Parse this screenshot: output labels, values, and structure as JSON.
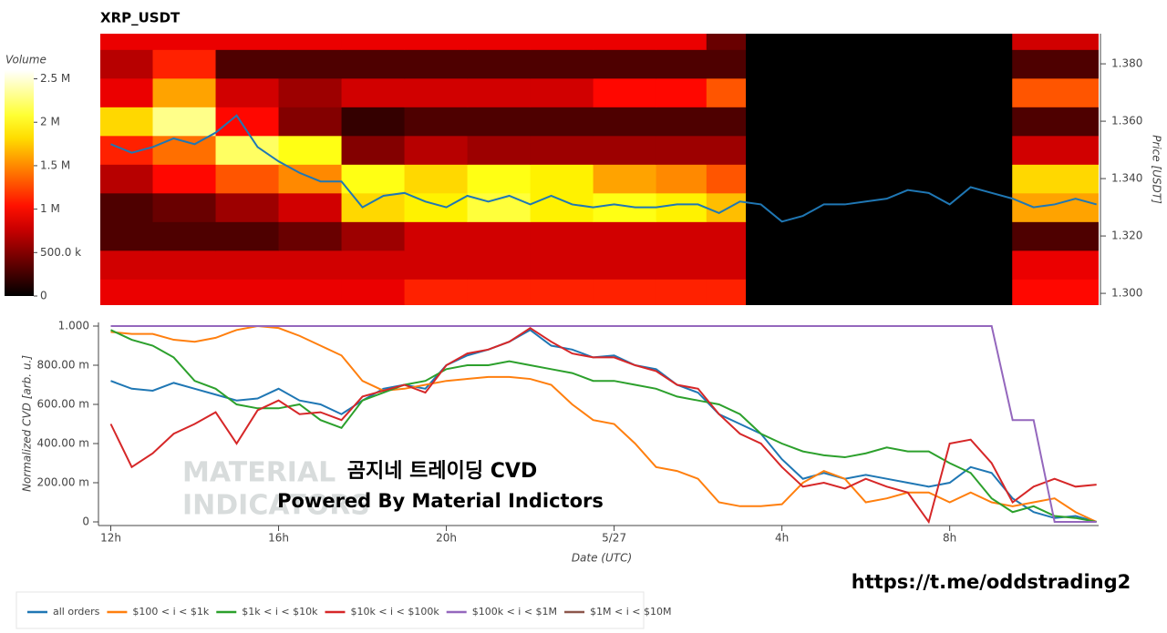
{
  "chart_data": [
    {
      "type": "heatmap",
      "title": "XRP_USDT",
      "colorbar_title": "Volume",
      "y_label": "Price [USDT]",
      "colormap": "hot",
      "xlim": [
        11.75,
        35.55
      ],
      "ylim": [
        1.2959,
        1.3905
      ],
      "yticks": [
        {
          "value": 1.3,
          "label": "1.300"
        },
        {
          "value": 1.32,
          "label": "1.320"
        },
        {
          "value": 1.34,
          "label": "1.340"
        },
        {
          "value": 1.36,
          "label": "1.360"
        },
        {
          "value": 1.38,
          "label": "1.380"
        }
      ],
      "clim": [
        0,
        2600000
      ],
      "cticks": [
        0,
        {
          "value": 500000,
          "label": "500.0 k"
        },
        {
          "value": 1000000,
          "label": "1 M"
        },
        {
          "value": 1500000,
          "label": "1.5 M"
        },
        {
          "value": 2000000,
          "label": "2 M"
        },
        {
          "value": 2500000,
          "label": "2.5 M"
        }
      ],
      "x_edges": [
        11.75,
        13,
        14.5,
        16,
        17.5,
        19,
        20.5,
        22,
        23.5,
        25,
        26.2,
        27.14,
        33.49,
        35.55
      ],
      "levels": [
        1.3,
        1.31,
        1.32,
        1.33,
        1.34,
        1.35,
        1.36,
        1.37,
        1.38,
        1.39
      ],
      "z": [
        [
          900000,
          900000,
          900000,
          900000,
          900000,
          1100000,
          1100000,
          1100000,
          1100000,
          1100000,
          1100000,
          0,
          1000000
        ],
        [
          800000,
          800000,
          800000,
          800000,
          800000,
          800000,
          800000,
          800000,
          800000,
          800000,
          800000,
          0,
          900000
        ],
        [
          300000,
          300000,
          300000,
          400000,
          600000,
          800000,
          800000,
          800000,
          800000,
          800000,
          800000,
          0,
          300000
        ],
        [
          300000,
          400000,
          600000,
          800000,
          1800000,
          1900000,
          2100000,
          1900000,
          2000000,
          1900000,
          1700000,
          0,
          1600000
        ],
        [
          700000,
          1000000,
          1300000,
          1500000,
          2000000,
          1800000,
          2000000,
          1900000,
          1600000,
          1500000,
          1300000,
          0,
          1800000
        ],
        [
          1100000,
          1400000,
          2200000,
          2000000,
          500000,
          700000,
          600000,
          600000,
          600000,
          600000,
          600000,
          0,
          800000
        ],
        [
          1800000,
          2300000,
          1000000,
          500000,
          200000,
          300000,
          300000,
          300000,
          300000,
          300000,
          300000,
          0,
          300000
        ],
        [
          900000,
          1600000,
          800000,
          600000,
          800000,
          800000,
          800000,
          800000,
          1000000,
          1000000,
          1300000,
          0,
          1300000
        ],
        [
          700000,
          1100000,
          300000,
          300000,
          300000,
          300000,
          300000,
          300000,
          300000,
          300000,
          300000,
          0,
          300000
        ],
        [
          900000,
          900000,
          900000,
          900000,
          900000,
          900000,
          900000,
          900000,
          900000,
          900000,
          400000,
          0,
          800000
        ]
      ],
      "line": {
        "color": "#1f77b4",
        "x": [
          12,
          12.5,
          13,
          13.5,
          14,
          14.5,
          15,
          15.5,
          16,
          16.5,
          17,
          17.5,
          18,
          18.5,
          19,
          19.5,
          20,
          20.5,
          21,
          21.5,
          22,
          22.5,
          23,
          23.5,
          24,
          24.5,
          25,
          25.5,
          26,
          26.5,
          27,
          27.5,
          28,
          28.5,
          29,
          29.5,
          30,
          30.5,
          31,
          31.5,
          32,
          32.5,
          33,
          33.5,
          34,
          34.5,
          35,
          35.5
        ],
        "values": [
          1.352,
          1.349,
          1.351,
          1.354,
          1.352,
          1.356,
          1.362,
          1.351,
          1.346,
          1.342,
          1.339,
          1.339,
          1.33,
          1.334,
          1.335,
          1.332,
          1.33,
          1.334,
          1.332,
          1.334,
          1.331,
          1.334,
          1.331,
          1.33,
          1.331,
          1.33,
          1.33,
          1.331,
          1.331,
          1.328,
          1.332,
          1.331,
          1.325,
          1.327,
          1.331,
          1.331,
          1.332,
          1.333,
          1.336,
          1.335,
          1.331,
          1.337,
          1.335,
          1.333,
          1.33,
          1.331,
          1.333,
          1.331
        ]
      }
    },
    {
      "type": "line",
      "x_label": "Date (UTC)",
      "y_label": "Normalized CVD [arb. u.]",
      "xlim": [
        11.75,
        35.55
      ],
      "ylim": [
        0,
        1
      ],
      "xticks": [
        {
          "value": 12,
          "label": "12h"
        },
        {
          "value": 16,
          "label": "16h"
        },
        {
          "value": 20,
          "label": "20h"
        },
        {
          "value": 24,
          "label": "5/27"
        },
        {
          "value": 28,
          "label": "4h"
        },
        {
          "value": 32,
          "label": "8h"
        }
      ],
      "yticks": [
        0,
        {
          "value": 0.2,
          "label": "200.00 m"
        },
        {
          "value": 0.4,
          "label": "400.00 m"
        },
        {
          "value": 0.6,
          "label": "600.00 m"
        },
        {
          "value": 0.8,
          "label": "800.00 m"
        },
        {
          "value": 1,
          "label": "1.000"
        }
      ],
      "x": [
        12,
        12.5,
        13,
        13.5,
        14,
        14.5,
        15,
        15.5,
        16,
        16.5,
        17,
        17.5,
        18,
        18.5,
        19,
        19.5,
        20,
        20.5,
        21,
        21.5,
        22,
        22.5,
        23,
        23.5,
        24,
        24.5,
        25,
        25.5,
        26,
        26.5,
        27,
        27.5,
        28,
        28.5,
        29,
        29.5,
        30,
        30.5,
        31,
        31.5,
        32,
        32.5,
        33,
        33.5,
        34,
        34.5,
        35,
        35.5
      ],
      "series": [
        {
          "name": "all orders",
          "color": "#1f77b4",
          "values": [
            0.72,
            0.68,
            0.67,
            0.71,
            0.68,
            0.65,
            0.62,
            0.63,
            0.68,
            0.62,
            0.6,
            0.55,
            0.62,
            0.68,
            0.7,
            0.68,
            0.8,
            0.85,
            0.88,
            0.92,
            0.98,
            0.9,
            0.88,
            0.84,
            0.85,
            0.8,
            0.78,
            0.7,
            0.66,
            0.55,
            0.5,
            0.45,
            0.32,
            0.22,
            0.25,
            0.22,
            0.24,
            0.22,
            0.2,
            0.18,
            0.2,
            0.28,
            0.25,
            0.12,
            0.05,
            0.02,
            0.03,
            0.0
          ]
        },
        {
          "name": "$100 < i < $1k",
          "color": "#ff7f0e",
          "values": [
            0.97,
            0.96,
            0.96,
            0.93,
            0.92,
            0.94,
            0.98,
            1.0,
            0.99,
            0.95,
            0.9,
            0.85,
            0.72,
            0.67,
            0.68,
            0.7,
            0.72,
            0.73,
            0.74,
            0.74,
            0.73,
            0.7,
            0.6,
            0.52,
            0.5,
            0.4,
            0.28,
            0.26,
            0.22,
            0.1,
            0.08,
            0.08,
            0.09,
            0.2,
            0.26,
            0.22,
            0.1,
            0.12,
            0.15,
            0.15,
            0.1,
            0.15,
            0.1,
            0.08,
            0.1,
            0.12,
            0.05,
            0.0
          ]
        },
        {
          "name": "$1k < i < $10k",
          "color": "#2ca02c",
          "values": [
            0.98,
            0.93,
            0.9,
            0.84,
            0.72,
            0.68,
            0.6,
            0.58,
            0.58,
            0.6,
            0.52,
            0.48,
            0.62,
            0.66,
            0.7,
            0.72,
            0.78,
            0.8,
            0.8,
            0.82,
            0.8,
            0.78,
            0.76,
            0.72,
            0.72,
            0.7,
            0.68,
            0.64,
            0.62,
            0.6,
            0.55,
            0.45,
            0.4,
            0.36,
            0.34,
            0.33,
            0.35,
            0.38,
            0.36,
            0.36,
            0.3,
            0.25,
            0.12,
            0.05,
            0.08,
            0.03,
            0.02,
            0.0
          ]
        },
        {
          "name": "$10k < i < $100k",
          "color": "#d62728",
          "values": [
            0.5,
            0.28,
            0.35,
            0.45,
            0.5,
            0.56,
            0.4,
            0.57,
            0.62,
            0.55,
            0.56,
            0.52,
            0.64,
            0.67,
            0.7,
            0.66,
            0.8,
            0.86,
            0.88,
            0.92,
            0.99,
            0.92,
            0.86,
            0.84,
            0.84,
            0.8,
            0.77,
            0.7,
            0.68,
            0.55,
            0.45,
            0.4,
            0.28,
            0.18,
            0.2,
            0.17,
            0.22,
            0.18,
            0.15,
            0.0,
            0.4,
            0.42,
            0.3,
            0.1,
            0.18,
            0.22,
            0.18,
            0.19
          ]
        },
        {
          "name": "$100k < i < $1M",
          "color": "#9467bd",
          "values": [
            1,
            1,
            1,
            1,
            1,
            1,
            1,
            1,
            1,
            1,
            1,
            1,
            1,
            1,
            1,
            1,
            1,
            1,
            1,
            1,
            1,
            1,
            1,
            1,
            1,
            1,
            1,
            1,
            1,
            1,
            1,
            1,
            1,
            1,
            1,
            1,
            1,
            1,
            1,
            1,
            1,
            1,
            1,
            0.52,
            0.52,
            0.0,
            0.0,
            0.0
          ]
        },
        {
          "name": "$1M < i < $10M",
          "color": "#8c564b",
          "values": [
            null,
            null,
            null,
            null,
            null,
            null,
            null,
            null,
            null,
            null,
            null,
            null,
            null,
            null,
            null,
            null,
            null,
            null,
            null,
            null,
            null,
            null,
            null,
            null,
            null,
            null,
            null,
            null,
            null,
            null,
            null,
            null,
            null,
            null,
            null,
            null,
            null,
            null,
            null,
            null,
            null,
            null,
            null,
            null,
            null,
            null,
            null,
            null
          ]
        }
      ]
    }
  ],
  "overlay": {
    "watermark": [
      "MATERIAL",
      "INDICATORS"
    ],
    "headline": "곰지네 트레이딩 CVD",
    "subline": "Powered By Material Indictors",
    "link": "https://t.me/oddstrading2"
  }
}
